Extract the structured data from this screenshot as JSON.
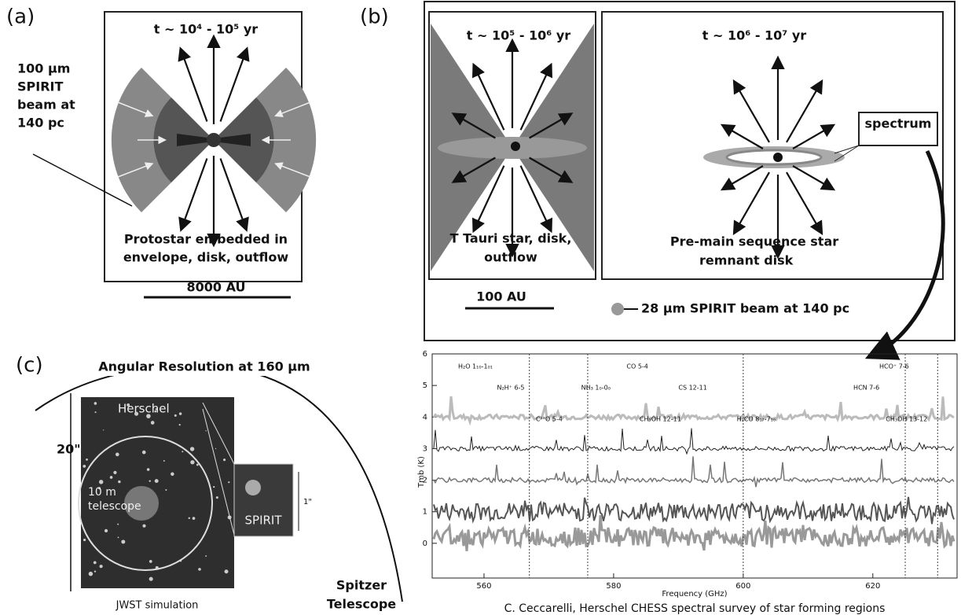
{
  "panel_a": {
    "label": "(a)",
    "time": "t ~ 10⁴ - 10⁵ yr",
    "beam_note": [
      "100 µm",
      "SPIRIT",
      "beam at",
      "140 pc"
    ],
    "caption": [
      "Protostar embedded in",
      "envelope, disk, outflow"
    ],
    "scale": "8000 AU"
  },
  "panel_b": {
    "label": "(b)",
    "left": {
      "time": "t ~ 10⁵ - 10⁶ yr",
      "caption": [
        "T Tauri star, disk,",
        "outflow"
      ]
    },
    "right": {
      "time": "t ~ 10⁶ - 10⁷ yr",
      "caption": [
        "Pre-main sequence star",
        "remnant disk"
      ],
      "inset": "spectrum"
    },
    "scale": "100 AU",
    "beam_legend": "28 µm SPIRIT beam at 140 pc"
  },
  "panel_c": {
    "label": "(c)",
    "title": "Angular Resolution at 160 µm",
    "herschel": "Herschel",
    "size_large": "20\"",
    "telescope": [
      "10 m",
      "telescope"
    ],
    "size_small": "1\"",
    "spirit": "SPIRIT",
    "image_caption": "JWST simulation",
    "spitzer": [
      "Spitzer",
      "Telescope"
    ]
  },
  "spectrum": {
    "lines": [
      "H₂O 1₁₀-1₀₁",
      "N₂H⁺ 6-5",
      "C¹⁸O 5-4",
      "NH₃ 1₀-0₀",
      "CO 5-4",
      "CH₃OH 12-11",
      "CS 12-11",
      "H₂CO 8₁₇-7₁₆",
      "HCN 7-6",
      "HCO⁺ 7-6",
      "CH₃OH 13-12"
    ],
    "xlabel": "Frequency (GHz)",
    "ylabel": "Tmb (K)",
    "xlim": [
      552,
      633
    ],
    "ylim": [
      -1.1,
      6
    ],
    "xticks": [
      560,
      580,
      600,
      620
    ],
    "yticks": [
      0,
      1,
      2,
      3,
      4,
      5,
      6
    ],
    "caption": "C. Ceccarelli, Herschel CHESS spectral survey of star forming regions"
  }
}
